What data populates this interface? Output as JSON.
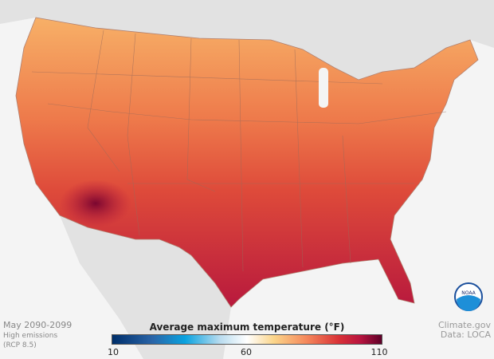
{
  "map": {
    "subject": "Contiguous United States",
    "colors": {
      "background": "#f4f4f4",
      "neighbor_land": "#e0e0e0",
      "state_borders": "#9a6a5a"
    }
  },
  "caption": {
    "period": "May 2090-2099",
    "scenario": "High emissions",
    "scenario_code": "(RCP 8.5)"
  },
  "credit": {
    "source": "Climate.gov",
    "data": "Data: LOCA"
  },
  "logo": {
    "text": "NOAA"
  },
  "legend": {
    "title": "Average maximum temperature (°F)",
    "min": "10",
    "mid": "60",
    "max": "110"
  }
}
